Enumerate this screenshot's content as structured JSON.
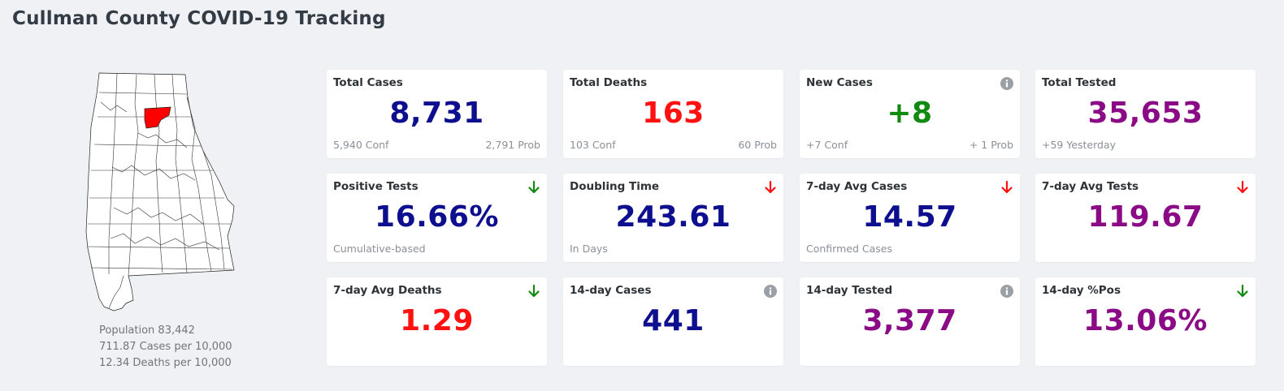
{
  "page": {
    "title": "Cullman County COVID-19 Tracking"
  },
  "county": {
    "population": "Population 83,442",
    "cases_per_10k": "711.87 Cases per 10,000",
    "deaths_per_10k": "12.34 Deaths per 10,000",
    "highlight_color": "#ff0000"
  },
  "colors": {
    "navy": "#0d0f8f",
    "red": "#ff1111",
    "green": "#118a11",
    "purple": "#8a0b85",
    "arrow_down_green": "#118a11",
    "arrow_down_red": "#ff1111",
    "info_icon": "#9aa0a6"
  },
  "cards": {
    "total_cases": {
      "title": "Total Cases",
      "value": "8,731",
      "sub_left": "5,940 Conf",
      "sub_right": "2,791 Prob"
    },
    "total_deaths": {
      "title": "Total Deaths",
      "value": "163",
      "sub_left": "103 Conf",
      "sub_right": "60 Prob"
    },
    "new_cases": {
      "title": "New Cases",
      "value": "+8",
      "sub_left": "+7 Conf",
      "sub_right": "+ 1 Prob",
      "icon": "info-icon"
    },
    "total_tested": {
      "title": "Total Tested",
      "value": "35,653",
      "sub_left": "+59 Yesterday"
    },
    "positive_tests": {
      "title": "Positive Tests",
      "value": "16.66%",
      "sub_left": "Cumulative-based",
      "icon": "arrow-down-green-icon"
    },
    "doubling_time": {
      "title": "Doubling Time",
      "value": "243.61",
      "sub_left": "In Days",
      "icon": "arrow-down-red-icon"
    },
    "avg7_cases": {
      "title": "7-day Avg Cases",
      "value": "14.57",
      "sub_left": "Confirmed Cases",
      "icon": "arrow-down-red-icon"
    },
    "avg7_tests": {
      "title": "7-day Avg Tests",
      "value": "119.67",
      "icon": "arrow-down-red-icon"
    },
    "avg7_deaths": {
      "title": "7-day Avg Deaths",
      "value": "1.29",
      "icon": "arrow-down-green-icon"
    },
    "cases14": {
      "title": "14-day Cases",
      "value": "441",
      "icon": "info-icon"
    },
    "tested14": {
      "title": "14-day Tested",
      "value": "3,377",
      "icon": "info-icon"
    },
    "pos14": {
      "title": "14-day %Pos",
      "value": "13.06%",
      "icon": "arrow-down-green-icon"
    }
  }
}
